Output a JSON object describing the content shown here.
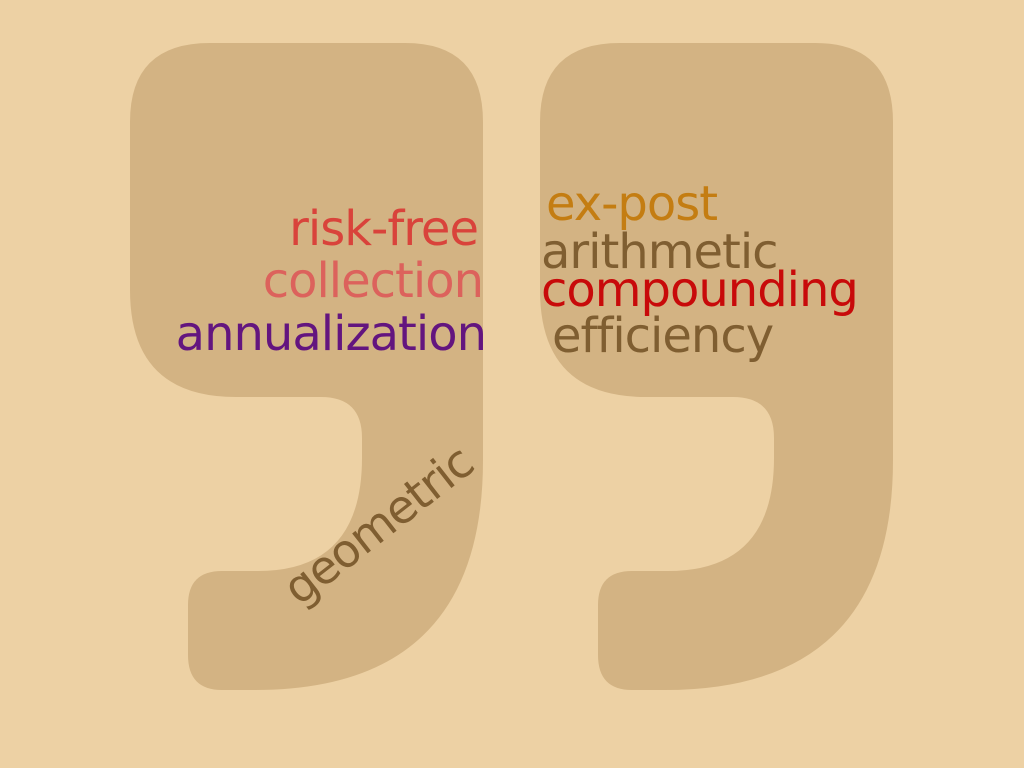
{
  "background_color": "#EDD1A4",
  "quote_mark": {
    "icon": "closing-quotation-mark-icon",
    "color": "#D3B383"
  },
  "words": {
    "risk_free": {
      "text": "risk-free",
      "color": "#D9433B"
    },
    "collection": {
      "text": "collection",
      "color": "#DC625C"
    },
    "annualization": {
      "text": "annualization",
      "color": "#63157F"
    },
    "ex_post": {
      "text": "ex-post",
      "color": "#C47D12"
    },
    "arithmetic": {
      "text": "arithmetic",
      "color": "#7F5E31"
    },
    "compounding": {
      "text": "compounding",
      "color": "#C80A0A"
    },
    "efficiency": {
      "text": "efficiency",
      "color": "#7F5E31"
    },
    "geometric": {
      "text": "geometric",
      "color": "#7F5E31"
    }
  }
}
